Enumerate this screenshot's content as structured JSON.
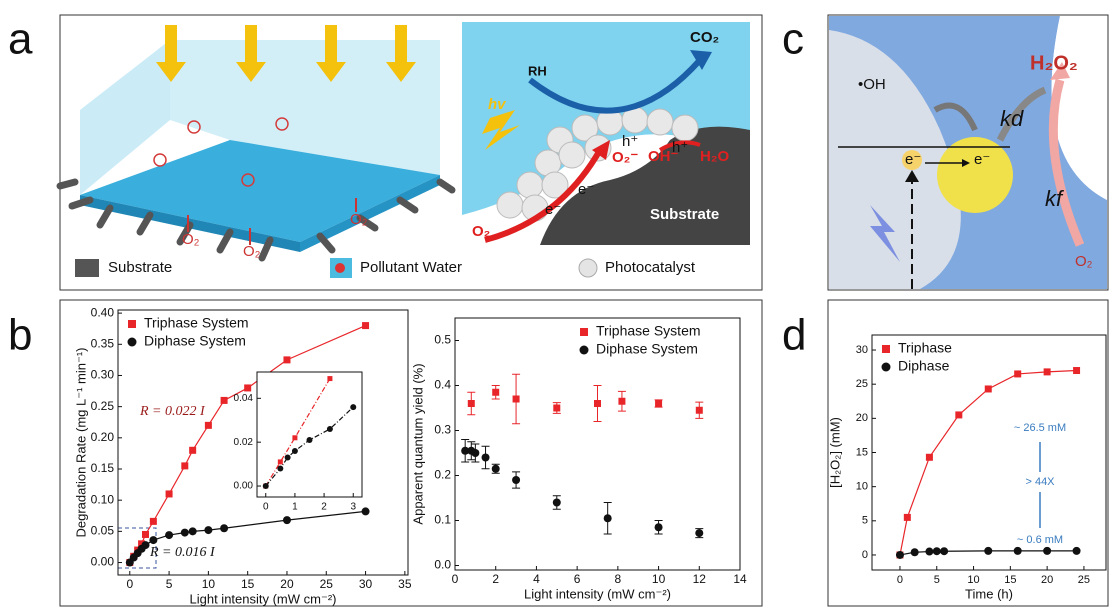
{
  "figure": {
    "panel_labels": [
      "a",
      "b",
      "c",
      "d"
    ],
    "panel_a": {
      "legend": [
        "Substrate",
        "Pollutant Water",
        "Photocatalyst"
      ],
      "left_labels": [
        "O₂",
        "O₂",
        "O₂"
      ],
      "inset_labels": {
        "rh": "RH",
        "co2": "CO₂",
        "hv": "hv",
        "h1": "h⁺",
        "h2": "h⁺",
        "o2m": "O₂⁻",
        "ohm": "OH⁻",
        "h2o": "H₂O",
        "e1": "e⁻",
        "e2": "e⁻",
        "o2": "O₂",
        "substrate": "Substrate"
      }
    },
    "panel_c": {
      "oh": "•OH",
      "kd": "kd",
      "h2o2": "H₂O₂",
      "e1": "e⁻",
      "e2": "e⁻",
      "kf": "kf",
      "o2": "O₂"
    }
  },
  "chart_data": [
    {
      "type": "scatter",
      "xlabel": "Light intensity (mW cm⁻²)",
      "ylabel": "Degradation Rate (mg L⁻¹ min⁻¹)",
      "xlim": [
        -1.5,
        35.4
      ],
      "ylim": [
        -0.02,
        0.405
      ],
      "xticks": [
        0,
        5,
        10,
        15,
        20,
        25,
        30,
        35
      ],
      "yticks": [
        {
          "value": 0,
          "label": "0.00"
        },
        {
          "value": 0.05,
          "label": "0.05"
        },
        {
          "value": 0.1,
          "label": "0.10"
        },
        {
          "value": 0.15,
          "label": "0.15"
        },
        {
          "value": 0.2,
          "label": "0.20"
        },
        {
          "value": 0.25,
          "label": "0.25"
        },
        {
          "value": 0.3,
          "label": "0.30"
        },
        {
          "value": 0.35,
          "label": "0.35"
        },
        {
          "value": 0.4,
          "label": "0.40"
        }
      ],
      "legend": "upper left",
      "series": [
        {
          "name": "Triphase System",
          "color": "#e8262a",
          "marker": "square",
          "line": "solid",
          "x": [
            0,
            0.5,
            1,
            1.5,
            2,
            3,
            5,
            7,
            8,
            10,
            12,
            15,
            20,
            30
          ],
          "values": [
            0,
            0.01,
            0.02,
            0.03,
            0.045,
            0.066,
            0.11,
            0.155,
            0.18,
            0.22,
            0.26,
            0.28,
            0.325,
            0.38
          ]
        },
        {
          "name": "Diphase System",
          "color": "#111111",
          "marker": "circle",
          "line": "solid",
          "x": [
            0,
            0.5,
            1,
            1.5,
            2,
            3,
            5,
            7,
            8,
            10,
            12,
            20,
            30
          ],
          "values": [
            0,
            0.008,
            0.015,
            0.022,
            0.028,
            0.036,
            0.044,
            0.048,
            0.05,
            0.052,
            0.055,
            0.068,
            0.082
          ]
        }
      ],
      "annotations": [
        "R = 0.022 I",
        "R = 0.016 I"
      ]
    },
    {
      "type": "scatter",
      "xlim": [
        -0.3,
        3.3
      ],
      "ylim": [
        -0.005,
        0.052
      ],
      "xticks": [
        0,
        1,
        2,
        3
      ],
      "yticks": [
        {
          "value": 0,
          "label": "0.00"
        },
        {
          "value": 0.02,
          "label": "0.02"
        },
        {
          "value": 0.04,
          "label": "0.04"
        }
      ],
      "series": [
        {
          "color": "#e8262a",
          "marker": "square",
          "line": "dashdot",
          "x": [
            0,
            0.5,
            1,
            2.2
          ],
          "values": [
            0,
            0.011,
            0.022,
            0.049
          ]
        },
        {
          "color": "#111111",
          "marker": "circle",
          "line": "dashdot",
          "x": [
            0,
            0.5,
            0.75,
            1,
            1.5,
            2.2,
            3
          ],
          "values": [
            0,
            0.008,
            0.013,
            0.016,
            0.021,
            0.026,
            0.036
          ]
        }
      ]
    },
    {
      "type": "scatter",
      "xlabel": "Light intensity (mW cm⁻²)",
      "ylabel": "Apparent quantum yield (%)",
      "xlim": [
        0,
        14
      ],
      "ylim": [
        -0.01,
        0.55
      ],
      "xticks": [
        0,
        2,
        4,
        6,
        8,
        10,
        12,
        14
      ],
      "yticks": [
        {
          "value": 0,
          "label": "0.0"
        },
        {
          "value": 0.1,
          "label": "0.1"
        },
        {
          "value": 0.2,
          "label": "0.2"
        },
        {
          "value": 0.3,
          "label": "0.3"
        },
        {
          "value": 0.4,
          "label": "0.4"
        },
        {
          "value": 0.5,
          "label": "0.5"
        }
      ],
      "legend": "upper right",
      "series": [
        {
          "name": "Triphase System",
          "color": "#e8262a",
          "marker": "square",
          "x": [
            0.8,
            2,
            3,
            5,
            7,
            8.2,
            10,
            12
          ],
          "values": [
            0.36,
            0.385,
            0.37,
            0.35,
            0.36,
            0.365,
            0.36,
            0.345
          ],
          "errors": [
            0.025,
            0.015,
            0.055,
            0.012,
            0.04,
            0.022,
            0.008,
            0.018
          ]
        },
        {
          "name": "Diphase System",
          "color": "#111111",
          "marker": "circle",
          "x": [
            0.5,
            0.8,
            1,
            1.5,
            2,
            3,
            5,
            7.5,
            10,
            12
          ],
          "values": [
            0.255,
            0.255,
            0.25,
            0.24,
            0.215,
            0.19,
            0.14,
            0.105,
            0.085,
            0.072
          ],
          "errors": [
            0.025,
            0.02,
            0.02,
            0.025,
            0.01,
            0.018,
            0.015,
            0.035,
            0.015,
            0.01
          ]
        }
      ]
    },
    {
      "type": "scatter",
      "xlabel": "Time (h)",
      "ylabel": "[H₂O₂] (mM)",
      "xlim": [
        -3.8,
        28
      ],
      "ylim": [
        -2.2,
        32.2
      ],
      "xticks": [
        0,
        5,
        10,
        15,
        20,
        25
      ],
      "yticks": [
        0,
        5,
        10,
        15,
        20,
        25,
        30
      ],
      "legend": "upper left",
      "series": [
        {
          "name": "Triphase",
          "color": "#e8262a",
          "marker": "square",
          "line": "solid",
          "x": [
            0,
            1,
            4,
            8,
            12,
            16,
            20,
            24
          ],
          "values": [
            0,
            5.5,
            14.3,
            20.5,
            24.3,
            26.5,
            26.8,
            27
          ]
        },
        {
          "name": "Diphase",
          "color": "#111111",
          "marker": "circle",
          "line": "solid",
          "x": [
            0,
            2,
            4,
            5,
            6,
            12,
            16,
            20,
            24
          ],
          "values": [
            0,
            0.4,
            0.5,
            0.55,
            0.55,
            0.6,
            0.6,
            0.6,
            0.6
          ]
        }
      ],
      "annotations": [
        "~ 26.5 mM",
        "> 44X",
        "~ 0.6 mM"
      ]
    }
  ]
}
